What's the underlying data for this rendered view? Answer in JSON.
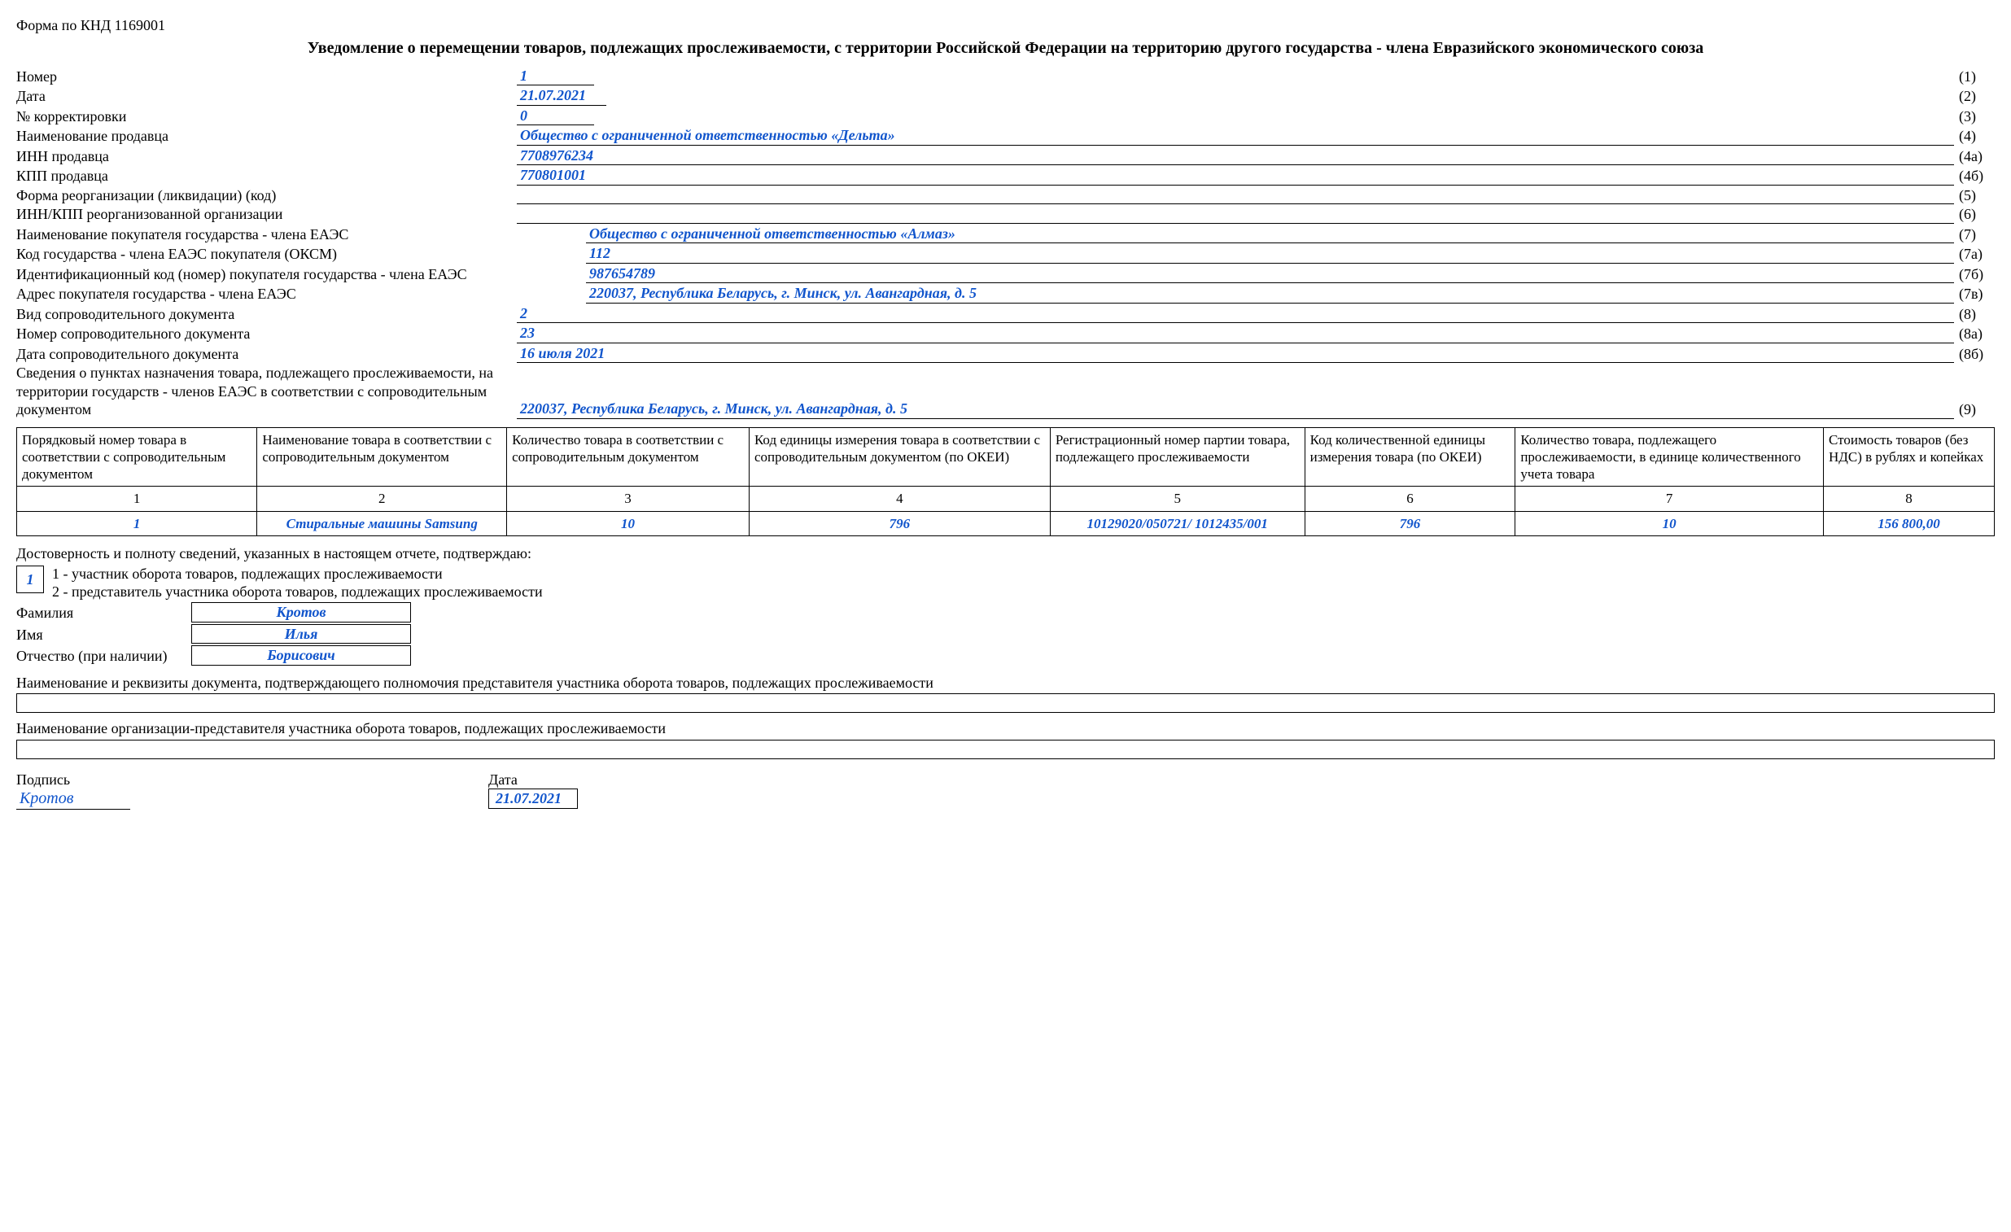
{
  "form_code": "Форма по КНД 1169001",
  "title": "Уведомление о перемещении товаров, подлежащих прослеживаемости, с территории Российской Федерации на территорию другого государства - члена Евразийского экономического союза",
  "fields": {
    "number": {
      "label": "Номер",
      "value": "1",
      "ref": "(1)",
      "width": "short"
    },
    "date": {
      "label": "Дата",
      "value": "21.07.2021",
      "ref": "(2)",
      "width": "med"
    },
    "correction": {
      "label": "№ корректировки",
      "value": "0",
      "ref": "(3)",
      "width": "short"
    },
    "seller_name": {
      "label": "Наименование продавца",
      "value": "Общество с ограниченной ответственностью «Дельта»",
      "ref": "(4)",
      "width": "full"
    },
    "seller_inn": {
      "label": "ИНН продавца",
      "value": "7708976234",
      "ref": "(4а)",
      "width": "full"
    },
    "seller_kpp": {
      "label": "КПП продавца",
      "value": "770801001",
      "ref": "(4б)",
      "width": "full"
    },
    "reorg_form": {
      "label": "Форма реорганизации (ликвидации) (код)",
      "value": "",
      "ref": "(5)",
      "width": "full"
    },
    "reorg_innkpp": {
      "label": "ИНН/КПП реорганизованной организации",
      "value": "",
      "ref": "(6)",
      "width": "full"
    },
    "buyer_name": {
      "label": "Наименование покупателя государства - члена ЕАЭС",
      "value": "Общество с ограниченной ответственностью «Алмаз»",
      "ref": "(7)",
      "width": "full",
      "indent": true
    },
    "buyer_country": {
      "label": "Код государства - члена ЕАЭС покупателя (ОКСМ)",
      "value": "112",
      "ref": "(7а)",
      "width": "full",
      "indent": true
    },
    "buyer_id": {
      "label": "Идентификационный код (номер) покупателя государства - члена ЕАЭС",
      "value": "987654789",
      "ref": "(7б)",
      "width": "full",
      "indent": true
    },
    "buyer_addr": {
      "label": "Адрес покупателя государства - члена ЕАЭС",
      "value": "220037, Республика Беларусь, г. Минск, ул. Авангардная, д. 5",
      "ref": "(7в)",
      "width": "full",
      "indent": true
    },
    "doc_type": {
      "label": "Вид сопроводительного документа",
      "value": "2",
      "ref": "(8)",
      "width": "full"
    },
    "doc_num": {
      "label": "Номер сопроводительного документа",
      "value": "23",
      "ref": "(8а)",
      "width": "full"
    },
    "doc_date": {
      "label": "Дата сопроводительного документа",
      "value": "16 июля 2021",
      "ref": "(8б)",
      "width": "full"
    },
    "dest_info": {
      "label": "Сведения о пунктах назначения товара, подлежащего прослеживаемости, на территории государств - членов ЕАЭС в соответствии с сопроводительным документом",
      "value": "220037, Республика Беларусь, г. Минск, ул. Авангард­ная, д. 5",
      "ref": "(9)",
      "width": "full",
      "indent": true
    }
  },
  "table": {
    "headers": [
      "Порядковый номер товара в соответствии с сопроводи­тельным документом",
      "Наименование товара в соответствии с сопроводительным документом",
      "Количество товара в соответствии с сопроводительным документом",
      "Код единицы измерения товара в соответствии с сопроводительным доку­ментом (по ОКЕИ)",
      "Регистрационный номер партии товара, подлежащего прослеживаемости",
      "Код количественной единицы измерения товара (по ОКЕИ)",
      "Количество товара, подлежащего прослеживаемости, в единице количественного учета товара",
      "Стоимость товаров (без НДС) в рублях и копейках"
    ],
    "colnums": [
      "1",
      "2",
      "3",
      "4",
      "5",
      "6",
      "7",
      "8"
    ],
    "rows": [
      [
        "1",
        "Стиральные машины Samsung",
        "10",
        "796",
        "10129020/050721/ 1012435/001",
        "796",
        "10",
        "156 800,00"
      ]
    ]
  },
  "confirm": {
    "intro": "Достоверность и полноту сведений, указанных в настоящем отчете, подтверждаю:",
    "type_value": "1",
    "type1": "1 - участник оборота товаров, подлежащих прослеживаемости",
    "type2": "2 - представитель участника оборота товаров, подлежащих прослеживаемости",
    "surname_label": "Фамилия",
    "surname": "Кротов",
    "name_label": "Имя",
    "name": "Илья",
    "patr_label": "Отчество (при наличии)",
    "patr": "Борисович",
    "auth_doc": "Наименование и реквизиты документа, подтверждающего полномочия представителя участника оборота товаров, подлежащих прослеживаемости",
    "rep_org": "Наименование организации-представителя участника оборота товаров, подлежащих прослеживаемости",
    "sign_label": "Подпись",
    "sign_value": "Кротов",
    "sign_date_label": "Дата",
    "sign_date": "21.07.2021"
  }
}
